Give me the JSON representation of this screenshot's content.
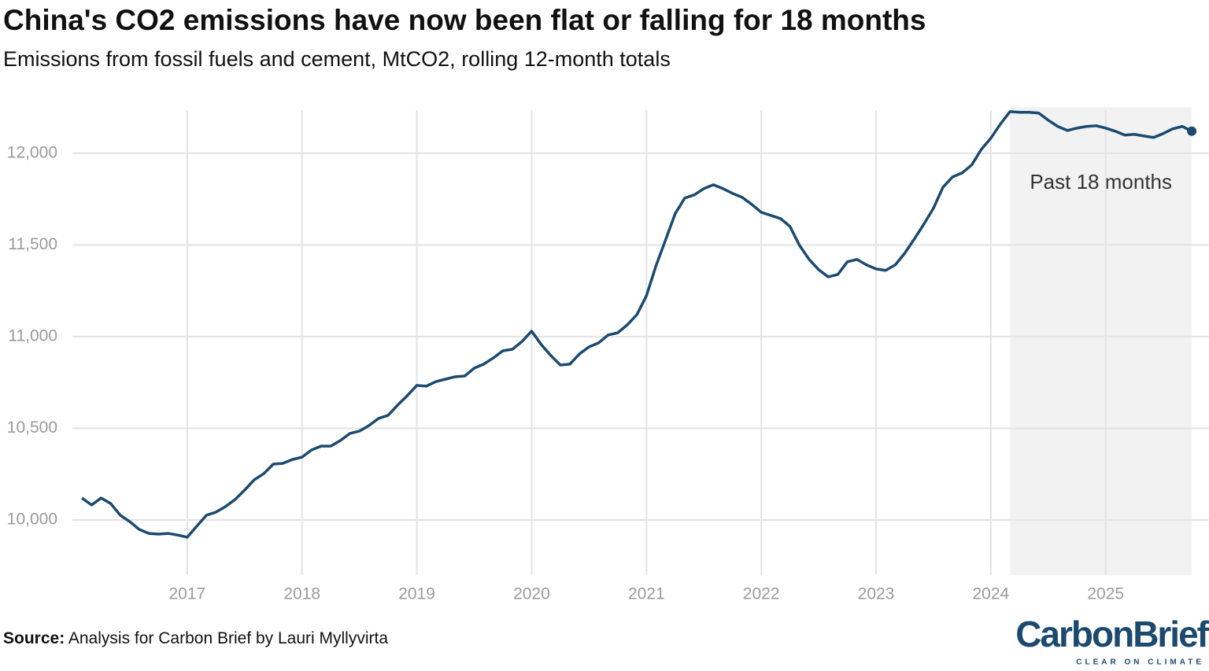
{
  "chart_data": {
    "type": "line",
    "title": "China's CO2 emissions have now been flat or falling for 18 months",
    "subtitle": "Emissions from fossil fuels and cement, MtCO2, rolling 12-month totals",
    "source_label": "Source:",
    "source": "Analysis for Carbon Brief by Lauri Myllyvirta",
    "logo": "CarbonBrief",
    "logo_tagline": "CLEAR ON CLIMATE",
    "highlight_label": "Past 18 months",
    "highlight_range": [
      2024.167,
      2025.75
    ],
    "highlight_color": "#f2f2f2",
    "grid": true,
    "xlim": [
      2016.0,
      2025.9
    ],
    "xticks": [
      2017,
      2018,
      2019,
      2020,
      2021,
      2022,
      2023,
      2024,
      2025
    ],
    "ylim": [
      9700,
      12250
    ],
    "yticks": [
      {
        "value": 10000,
        "label": "10,000"
      },
      {
        "value": 10500,
        "label": "10,500"
      },
      {
        "value": 11000,
        "label": "11,000"
      },
      {
        "value": 11500,
        "label": "11,500"
      },
      {
        "value": 12000,
        "label": "12,000"
      }
    ],
    "x": [
      2016.083,
      2016.167,
      2016.25,
      2016.333,
      2016.417,
      2016.5,
      2016.583,
      2016.667,
      2016.75,
      2016.833,
      2016.917,
      2017,
      2017.083,
      2017.167,
      2017.25,
      2017.333,
      2017.417,
      2017.5,
      2017.583,
      2017.667,
      2017.75,
      2017.833,
      2017.917,
      2018,
      2018.083,
      2018.167,
      2018.25,
      2018.333,
      2018.417,
      2018.5,
      2018.583,
      2018.667,
      2018.75,
      2018.833,
      2018.917,
      2019,
      2019.083,
      2019.167,
      2019.25,
      2019.333,
      2019.417,
      2019.5,
      2019.583,
      2019.667,
      2019.75,
      2019.833,
      2019.917,
      2020,
      2020.083,
      2020.167,
      2020.25,
      2020.333,
      2020.417,
      2020.5,
      2020.583,
      2020.667,
      2020.75,
      2020.833,
      2020.917,
      2021,
      2021.083,
      2021.167,
      2021.25,
      2021.333,
      2021.417,
      2021.5,
      2021.583,
      2021.667,
      2021.75,
      2021.833,
      2021.917,
      2022,
      2022.083,
      2022.167,
      2022.25,
      2022.333,
      2022.417,
      2022.5,
      2022.583,
      2022.667,
      2022.75,
      2022.833,
      2022.917,
      2023,
      2023.083,
      2023.167,
      2023.25,
      2023.333,
      2023.417,
      2023.5,
      2023.583,
      2023.667,
      2023.75,
      2023.833,
      2023.917,
      2024,
      2024.083,
      2024.167,
      2024.25,
      2024.333,
      2024.417,
      2024.5,
      2024.583,
      2024.667,
      2024.75,
      2024.833,
      2024.917,
      2025,
      2025.083,
      2025.167,
      2025.25,
      2025.333,
      2025.417,
      2025.5,
      2025.583,
      2025.667,
      2025.75
    ],
    "series": [
      {
        "color": "#1c4a6e",
        "values": [
          10120,
          10082,
          10120,
          10090,
          10026,
          9991,
          9948,
          9927,
          9923,
          9927,
          9918,
          9906,
          9966,
          10026,
          10043,
          10073,
          10112,
          10163,
          10219,
          10253,
          10305,
          10309,
          10330,
          10343,
          10382,
          10403,
          10403,
          10433,
          10472,
          10485,
          10515,
          10554,
          10571,
          10627,
          10678,
          10734,
          10730,
          10755,
          10768,
          10781,
          10785,
          10828,
          10850,
          10884,
          10923,
          10931,
          10974,
          11030,
          10957,
          10897,
          10845,
          10850,
          10906,
          10944,
          10966,
          11009,
          11021,
          11064,
          11120,
          11223,
          11386,
          11528,
          11670,
          11755,
          11773,
          11807,
          11828,
          11807,
          11781,
          11760,
          11721,
          11678,
          11661,
          11644,
          11601,
          11498,
          11421,
          11365,
          11326,
          11339,
          11408,
          11421,
          11391,
          11369,
          11361,
          11391,
          11455,
          11532,
          11614,
          11700,
          11815,
          11871,
          11893,
          11936,
          12021,
          12082,
          12159,
          12227,
          12223,
          12223,
          12219,
          12180,
          12146,
          12124,
          12137,
          12146,
          12150,
          12137,
          12120,
          12099,
          12103,
          12094,
          12086,
          12107,
          12133,
          12146,
          12120
        ]
      }
    ]
  }
}
